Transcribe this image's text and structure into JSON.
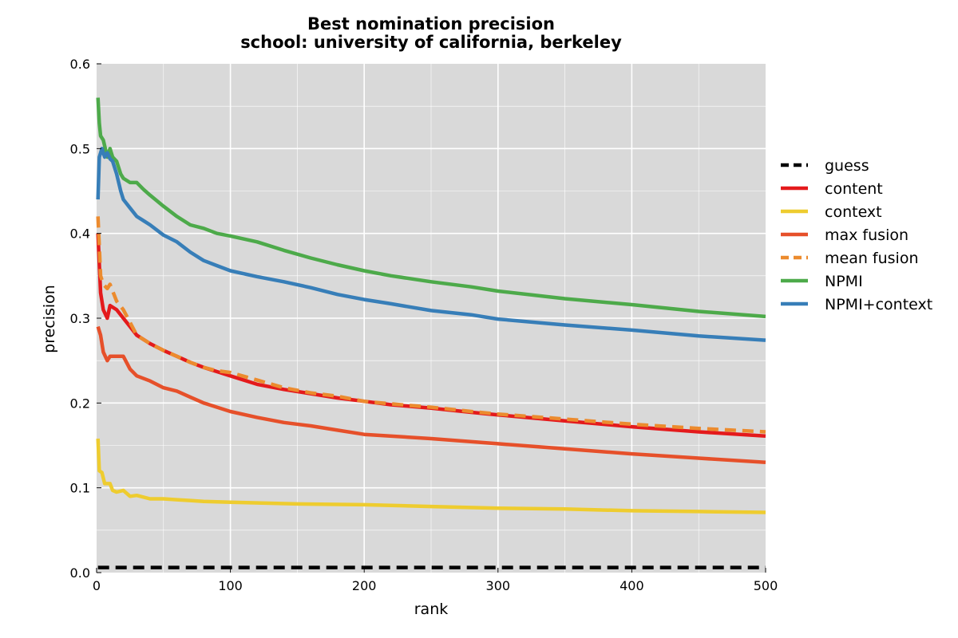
{
  "chart_data": {
    "type": "line",
    "title": "Best nomination precision",
    "subtitle": "school: university of california, berkeley",
    "xlabel": "rank",
    "ylabel": "precision",
    "xlim": [
      0,
      500
    ],
    "ylim": [
      0,
      0.6
    ],
    "xticks": [
      "0",
      "100",
      "200",
      "300",
      "400",
      "500"
    ],
    "yticks": [
      "0.0",
      "0.1",
      "0.2",
      "0.3",
      "0.4",
      "0.5",
      "0.6"
    ],
    "grid": true,
    "legend_position": "right",
    "series": [
      {
        "name": "guess",
        "color": "#000000",
        "dashed": true,
        "points": [
          [
            1,
            0.006
          ],
          [
            500,
            0.006
          ]
        ]
      },
      {
        "name": "content",
        "color": "#e41a1c",
        "dashed": false,
        "points": [
          [
            1,
            0.4
          ],
          [
            3,
            0.33
          ],
          [
            5,
            0.31
          ],
          [
            8,
            0.3
          ],
          [
            10,
            0.315
          ],
          [
            15,
            0.31
          ],
          [
            20,
            0.3
          ],
          [
            25,
            0.29
          ],
          [
            30,
            0.28
          ],
          [
            40,
            0.27
          ],
          [
            50,
            0.262
          ],
          [
            60,
            0.255
          ],
          [
            70,
            0.248
          ],
          [
            80,
            0.242
          ],
          [
            90,
            0.237
          ],
          [
            100,
            0.232
          ],
          [
            120,
            0.222
          ],
          [
            140,
            0.216
          ],
          [
            160,
            0.211
          ],
          [
            180,
            0.206
          ],
          [
            200,
            0.202
          ],
          [
            220,
            0.198
          ],
          [
            250,
            0.194
          ],
          [
            280,
            0.189
          ],
          [
            300,
            0.186
          ],
          [
            350,
            0.179
          ],
          [
            400,
            0.172
          ],
          [
            450,
            0.166
          ],
          [
            500,
            0.161
          ]
        ]
      },
      {
        "name": "context",
        "color": "#eecc2f",
        "dashed": false,
        "points": [
          [
            1,
            0.158
          ],
          [
            2,
            0.12
          ],
          [
            4,
            0.118
          ],
          [
            6,
            0.105
          ],
          [
            10,
            0.105
          ],
          [
            12,
            0.097
          ],
          [
            15,
            0.095
          ],
          [
            20,
            0.097
          ],
          [
            25,
            0.09
          ],
          [
            30,
            0.091
          ],
          [
            40,
            0.087
          ],
          [
            50,
            0.087
          ],
          [
            60,
            0.086
          ],
          [
            70,
            0.085
          ],
          [
            80,
            0.084
          ],
          [
            100,
            0.083
          ],
          [
            150,
            0.081
          ],
          [
            200,
            0.08
          ],
          [
            250,
            0.078
          ],
          [
            300,
            0.076
          ],
          [
            350,
            0.075
          ],
          [
            400,
            0.073
          ],
          [
            450,
            0.072
          ],
          [
            500,
            0.071
          ]
        ]
      },
      {
        "name": "max fusion",
        "color": "#e6502a",
        "dashed": false,
        "points": [
          [
            1,
            0.29
          ],
          [
            3,
            0.28
          ],
          [
            5,
            0.26
          ],
          [
            8,
            0.25
          ],
          [
            10,
            0.255
          ],
          [
            15,
            0.255
          ],
          [
            20,
            0.255
          ],
          [
            25,
            0.24
          ],
          [
            30,
            0.232
          ],
          [
            40,
            0.226
          ],
          [
            50,
            0.218
          ],
          [
            60,
            0.214
          ],
          [
            70,
            0.207
          ],
          [
            80,
            0.2
          ],
          [
            90,
            0.195
          ],
          [
            100,
            0.19
          ],
          [
            120,
            0.183
          ],
          [
            140,
            0.177
          ],
          [
            160,
            0.173
          ],
          [
            180,
            0.168
          ],
          [
            200,
            0.163
          ],
          [
            250,
            0.158
          ],
          [
            300,
            0.152
          ],
          [
            350,
            0.146
          ],
          [
            400,
            0.14
          ],
          [
            450,
            0.135
          ],
          [
            500,
            0.13
          ]
        ]
      },
      {
        "name": "mean fusion",
        "color": "#ec8b2e",
        "dashed": true,
        "points": [
          [
            1,
            0.42
          ],
          [
            3,
            0.35
          ],
          [
            5,
            0.34
          ],
          [
            8,
            0.335
          ],
          [
            10,
            0.34
          ],
          [
            15,
            0.32
          ],
          [
            20,
            0.31
          ],
          [
            25,
            0.295
          ],
          [
            30,
            0.28
          ],
          [
            40,
            0.27
          ],
          [
            50,
            0.262
          ],
          [
            60,
            0.255
          ],
          [
            70,
            0.248
          ],
          [
            80,
            0.242
          ],
          [
            90,
            0.238
          ],
          [
            100,
            0.236
          ],
          [
            120,
            0.227
          ],
          [
            140,
            0.218
          ],
          [
            160,
            0.212
          ],
          [
            180,
            0.208
          ],
          [
            200,
            0.202
          ],
          [
            220,
            0.199
          ],
          [
            250,
            0.195
          ],
          [
            280,
            0.19
          ],
          [
            300,
            0.187
          ],
          [
            350,
            0.181
          ],
          [
            400,
            0.175
          ],
          [
            450,
            0.17
          ],
          [
            500,
            0.166
          ]
        ]
      },
      {
        "name": "NPMI",
        "color": "#4daa4a",
        "dashed": false,
        "points": [
          [
            1,
            0.56
          ],
          [
            2,
            0.53
          ],
          [
            3,
            0.515
          ],
          [
            5,
            0.51
          ],
          [
            8,
            0.49
          ],
          [
            10,
            0.5
          ],
          [
            12,
            0.49
          ],
          [
            15,
            0.485
          ],
          [
            18,
            0.47
          ],
          [
            20,
            0.465
          ],
          [
            25,
            0.46
          ],
          [
            30,
            0.46
          ],
          [
            35,
            0.452
          ],
          [
            40,
            0.445
          ],
          [
            50,
            0.432
          ],
          [
            60,
            0.42
          ],
          [
            70,
            0.41
          ],
          [
            80,
            0.406
          ],
          [
            90,
            0.4
          ],
          [
            100,
            0.397
          ],
          [
            120,
            0.39
          ],
          [
            140,
            0.38
          ],
          [
            160,
            0.371
          ],
          [
            180,
            0.363
          ],
          [
            200,
            0.356
          ],
          [
            220,
            0.35
          ],
          [
            250,
            0.343
          ],
          [
            280,
            0.337
          ],
          [
            300,
            0.332
          ],
          [
            350,
            0.323
          ],
          [
            400,
            0.316
          ],
          [
            450,
            0.308
          ],
          [
            500,
            0.302
          ]
        ]
      },
      {
        "name": "NPMI+context",
        "color": "#377eb8",
        "dashed": false,
        "points": [
          [
            1,
            0.44
          ],
          [
            2,
            0.49
          ],
          [
            4,
            0.5
          ],
          [
            6,
            0.49
          ],
          [
            8,
            0.495
          ],
          [
            10,
            0.488
          ],
          [
            12,
            0.485
          ],
          [
            15,
            0.47
          ],
          [
            18,
            0.45
          ],
          [
            20,
            0.44
          ],
          [
            25,
            0.43
          ],
          [
            30,
            0.42
          ],
          [
            35,
            0.415
          ],
          [
            40,
            0.41
          ],
          [
            50,
            0.398
          ],
          [
            60,
            0.39
          ],
          [
            70,
            0.378
          ],
          [
            80,
            0.368
          ],
          [
            90,
            0.362
          ],
          [
            100,
            0.356
          ],
          [
            120,
            0.349
          ],
          [
            140,
            0.343
          ],
          [
            160,
            0.336
          ],
          [
            180,
            0.328
          ],
          [
            200,
            0.322
          ],
          [
            220,
            0.317
          ],
          [
            250,
            0.309
          ],
          [
            280,
            0.304
          ],
          [
            300,
            0.299
          ],
          [
            350,
            0.292
          ],
          [
            400,
            0.286
          ],
          [
            450,
            0.279
          ],
          [
            500,
            0.274
          ]
        ]
      }
    ]
  }
}
